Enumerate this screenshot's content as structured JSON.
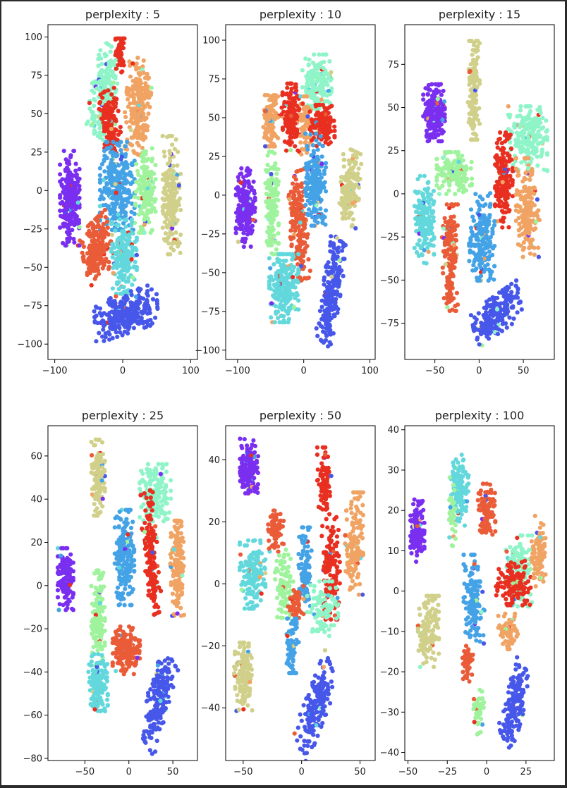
{
  "colors": {
    "frame_background": "#2b2b2b",
    "plot_background": "#ffffff",
    "axis_color": "#000000"
  },
  "chart_data": [
    {
      "type": "scatter",
      "title": "perplexity : 5",
      "xlim": [
        -110,
        110
      ],
      "ylim": [
        -110,
        108
      ],
      "xticks": [
        -100,
        0,
        100
      ],
      "yticks": [
        -100,
        -75,
        -50,
        -25,
        0,
        25,
        50,
        75,
        100
      ],
      "clusters": [
        {
          "color": "#7a2ff0",
          "cx": -78,
          "cy": -5,
          "rx": 13,
          "ry": 28,
          "angle": 0,
          "n": 220
        },
        {
          "color": "#8ff4c8",
          "cx": -28,
          "cy": 65,
          "rx": 16,
          "ry": 28,
          "angle": -0.3,
          "n": 200
        },
        {
          "color": "#e82f20",
          "cx": -4,
          "cy": 88,
          "rx": 6,
          "ry": 10,
          "angle": 0,
          "n": 50
        },
        {
          "color": "#e82f20",
          "cx": -18,
          "cy": 44,
          "rx": 12,
          "ry": 20,
          "angle": 0.3,
          "n": 150
        },
        {
          "color": "#f0a363",
          "cx": 22,
          "cy": 55,
          "rx": 16,
          "ry": 28,
          "angle": -0.2,
          "n": 220
        },
        {
          "color": "#44a2e6",
          "cx": -8,
          "cy": 3,
          "rx": 23,
          "ry": 26,
          "angle": 0,
          "n": 280
        },
        {
          "color": "#9ef39c",
          "cx": 33,
          "cy": 0,
          "rx": 14,
          "ry": 25,
          "angle": 0,
          "n": 170
        },
        {
          "color": "#d0d08a",
          "cx": 72,
          "cy": -3,
          "rx": 12,
          "ry": 35,
          "angle": 0,
          "n": 200
        },
        {
          "color": "#ea5b38",
          "cx": -38,
          "cy": -38,
          "rx": 19,
          "ry": 17,
          "angle": 0.4,
          "n": 200
        },
        {
          "color": "#63d8dc",
          "cx": 2,
          "cy": -43,
          "rx": 17,
          "ry": 22,
          "angle": 0,
          "n": 190
        },
        {
          "color": "#4657ea",
          "cx": 5,
          "cy": -80,
          "rx": 42,
          "ry": 12,
          "angle": 0.15,
          "n": 260
        }
      ]
    },
    {
      "type": "scatter",
      "title": "perplexity : 10",
      "xlim": [
        -118,
        108
      ],
      "ylim": [
        -106,
        110
      ],
      "xticks": [
        -100,
        0,
        100
      ],
      "yticks": [
        -100,
        -75,
        -50,
        -25,
        0,
        25,
        50,
        75,
        100
      ],
      "clusters": [
        {
          "color": "#8ff4c8",
          "cx": 20,
          "cy": 72,
          "rx": 20,
          "ry": 17,
          "angle": 0,
          "n": 170
        },
        {
          "color": "#f0a363",
          "cx": -50,
          "cy": 48,
          "rx": 10,
          "ry": 15,
          "angle": 0,
          "n": 110
        },
        {
          "color": "#e82f20",
          "cx": -20,
          "cy": 50,
          "rx": 12,
          "ry": 20,
          "angle": 0,
          "n": 150
        },
        {
          "color": "#f0a363",
          "cx": 3,
          "cy": 45,
          "rx": 7,
          "ry": 17,
          "angle": 0,
          "n": 80
        },
        {
          "color": "#e82f20",
          "cx": 28,
          "cy": 45,
          "rx": 17,
          "ry": 12,
          "angle": 0,
          "n": 130
        },
        {
          "color": "#7a2ff0",
          "cx": -88,
          "cy": -8,
          "rx": 13,
          "ry": 23,
          "angle": 0,
          "n": 200
        },
        {
          "color": "#9ef39c",
          "cx": -48,
          "cy": -5,
          "rx": 9,
          "ry": 30,
          "angle": 0,
          "n": 150
        },
        {
          "color": "#ea5b38",
          "cx": -8,
          "cy": -20,
          "rx": 12,
          "ry": 32,
          "angle": 0.15,
          "n": 200
        },
        {
          "color": "#44a2e6",
          "cx": 18,
          "cy": 10,
          "rx": 14,
          "ry": 27,
          "angle": 0,
          "n": 200
        },
        {
          "color": "#d0d08a",
          "cx": 70,
          "cy": 5,
          "rx": 13,
          "ry": 22,
          "angle": -0.2,
          "n": 170
        },
        {
          "color": "#63d8dc",
          "cx": -30,
          "cy": -60,
          "rx": 20,
          "ry": 20,
          "angle": 0,
          "n": 220
        },
        {
          "color": "#4657ea",
          "cx": 42,
          "cy": -62,
          "rx": 12,
          "ry": 32,
          "angle": -0.35,
          "n": 220
        }
      ]
    },
    {
      "type": "scatter",
      "title": "perplexity : 15",
      "xlim": [
        -84,
        85
      ],
      "ylim": [
        -96,
        98
      ],
      "xticks": [
        -50,
        0,
        50
      ],
      "yticks": [
        -75,
        -50,
        -25,
        0,
        25,
        50,
        75
      ],
      "clusters": [
        {
          "color": "#7a2ff0",
          "cx": -51,
          "cy": 47,
          "rx": 11,
          "ry": 15,
          "angle": 0,
          "n": 200
        },
        {
          "color": "#d0d08a",
          "cx": -6,
          "cy": 60,
          "rx": 6,
          "ry": 26,
          "angle": 0,
          "n": 140
        },
        {
          "color": "#8ff4c8",
          "cx": 55,
          "cy": 32,
          "rx": 20,
          "ry": 17,
          "angle": 0,
          "n": 200
        },
        {
          "color": "#9ef39c",
          "cx": -28,
          "cy": 12,
          "rx": 18,
          "ry": 11,
          "angle": 0,
          "n": 150
        },
        {
          "color": "#e82f20",
          "cx": 28,
          "cy": 8,
          "rx": 9,
          "ry": 25,
          "angle": 0,
          "n": 170
        },
        {
          "color": "#63d8dc",
          "cx": -62,
          "cy": -15,
          "rx": 10,
          "ry": 23,
          "angle": 0,
          "n": 170
        },
        {
          "color": "#ea5b38",
          "cx": -33,
          "cy": -37,
          "rx": 8,
          "ry": 28,
          "angle": 0,
          "n": 160
        },
        {
          "color": "#44a2e6",
          "cx": 3,
          "cy": -25,
          "rx": 13,
          "ry": 23,
          "angle": 0,
          "n": 190
        },
        {
          "color": "#f0a363",
          "cx": 55,
          "cy": -8,
          "rx": 12,
          "ry": 26,
          "angle": 0,
          "n": 170
        },
        {
          "color": "#4657ea",
          "cx": 20,
          "cy": -70,
          "rx": 25,
          "ry": 10,
          "angle": 0.35,
          "n": 200
        }
      ]
    },
    {
      "type": "scatter",
      "title": "perplexity : 25",
      "xlim": [
        -92,
        78
      ],
      "ylim": [
        -81,
        74
      ],
      "xticks": [
        -50,
        0,
        50
      ],
      "yticks": [
        -80,
        -60,
        -40,
        -20,
        0,
        20,
        40,
        60
      ],
      "clusters": [
        {
          "color": "#d0d08a",
          "cx": -35,
          "cy": 50,
          "rx": 7,
          "ry": 16,
          "angle": 0,
          "n": 130
        },
        {
          "color": "#8ff4c8",
          "cx": 30,
          "cy": 43,
          "rx": 16,
          "ry": 12,
          "angle": 0,
          "n": 170
        },
        {
          "color": "#44a2e6",
          "cx": -5,
          "cy": 13,
          "rx": 10,
          "ry": 20,
          "angle": 0,
          "n": 180
        },
        {
          "color": "#e82f20",
          "cx": 25,
          "cy": 15,
          "rx": 7,
          "ry": 26,
          "angle": 0.2,
          "n": 170
        },
        {
          "color": "#f0a363",
          "cx": 55,
          "cy": 8,
          "rx": 7,
          "ry": 20,
          "angle": 0,
          "n": 140
        },
        {
          "color": "#7a2ff0",
          "cx": -72,
          "cy": 3,
          "rx": 8,
          "ry": 13,
          "angle": 0,
          "n": 140
        },
        {
          "color": "#9ef39c",
          "cx": -35,
          "cy": -15,
          "rx": 7,
          "ry": 20,
          "angle": 0,
          "n": 130
        },
        {
          "color": "#ea5b38",
          "cx": -3,
          "cy": -30,
          "rx": 14,
          "ry": 10,
          "angle": 0,
          "n": 180
        },
        {
          "color": "#63d8dc",
          "cx": -35,
          "cy": -45,
          "rx": 10,
          "ry": 12,
          "angle": 0,
          "n": 150
        },
        {
          "color": "#4657ea",
          "cx": 33,
          "cy": -53,
          "rx": 10,
          "ry": 22,
          "angle": -0.6,
          "n": 210
        }
      ]
    },
    {
      "type": "scatter",
      "title": "perplexity : 50",
      "xlim": [
        -65,
        63
      ],
      "ylim": [
        -57,
        51
      ],
      "xticks": [
        -50,
        0,
        50
      ],
      "yticks": [
        -40,
        -20,
        0,
        20,
        40
      ],
      "clusters": [
        {
          "color": "#7a2ff0",
          "cx": -45,
          "cy": 38,
          "rx": 7,
          "ry": 8,
          "angle": 0,
          "n": 150
        },
        {
          "color": "#e82f20",
          "cx": 20,
          "cy": 33,
          "rx": 6,
          "ry": 10,
          "angle": 0,
          "n": 90
        },
        {
          "color": "#f0a363",
          "cx": 45,
          "cy": 13,
          "rx": 7,
          "ry": 15,
          "angle": 0,
          "n": 140
        },
        {
          "color": "#ea5b38",
          "cx": -22,
          "cy": 17,
          "rx": 6,
          "ry": 6,
          "angle": 0,
          "n": 70
        },
        {
          "color": "#63d8dc",
          "cx": -42,
          "cy": 3,
          "rx": 10,
          "ry": 10,
          "angle": 0,
          "n": 150
        },
        {
          "color": "#9ef39c",
          "cx": -15,
          "cy": 0,
          "rx": 7,
          "ry": 10,
          "angle": 0,
          "n": 90
        },
        {
          "color": "#44a2e6",
          "cx": 3,
          "cy": 5,
          "rx": 5,
          "ry": 12,
          "angle": 0,
          "n": 90
        },
        {
          "color": "#e82f20",
          "cx": 25,
          "cy": 5,
          "rx": 7,
          "ry": 15,
          "angle": 0,
          "n": 120
        },
        {
          "color": "#8ff4c8",
          "cx": 18,
          "cy": -8,
          "rx": 12,
          "ry": 8,
          "angle": 0,
          "n": 100
        },
        {
          "color": "#ea5b38",
          "cx": -5,
          "cy": -6,
          "rx": 6,
          "ry": 5,
          "angle": 0,
          "n": 60
        },
        {
          "color": "#44a2e6",
          "cx": -8,
          "cy": -20,
          "rx": 5,
          "ry": 8,
          "angle": 0,
          "n": 70
        },
        {
          "color": "#d0d08a",
          "cx": -50,
          "cy": -30,
          "rx": 7,
          "ry": 10,
          "angle": 0,
          "n": 130
        },
        {
          "color": "#4657ea",
          "cx": 12,
          "cy": -40,
          "rx": 7,
          "ry": 17,
          "angle": -0.8,
          "n": 190
        }
      ]
    },
    {
      "type": "scatter",
      "title": "perplexity : 100",
      "xlim": [
        -52,
        43
      ],
      "ylim": [
        -42,
        41
      ],
      "xticks": [
        -50,
        -25,
        0,
        25
      ],
      "yticks": [
        -40,
        -30,
        -20,
        -10,
        0,
        10,
        20,
        30,
        40
      ],
      "clusters": [
        {
          "color": "#7a2ff0",
          "cx": -44,
          "cy": 15,
          "rx": 4,
          "ry": 7,
          "angle": 0,
          "n": 130
        },
        {
          "color": "#63d8dc",
          "cx": -17,
          "cy": 25,
          "rx": 5,
          "ry": 8,
          "angle": 0,
          "n": 130
        },
        {
          "color": "#9ef39c",
          "cx": -22,
          "cy": 20,
          "rx": 2,
          "ry": 8,
          "angle": 0,
          "n": 40
        },
        {
          "color": "#ea5b38",
          "cx": 0,
          "cy": 20,
          "rx": 5,
          "ry": 6,
          "angle": 0,
          "n": 100
        },
        {
          "color": "#8ff4c8",
          "cx": 20,
          "cy": 5,
          "rx": 8,
          "ry": 8,
          "angle": 0,
          "n": 130
        },
        {
          "color": "#e82f20",
          "cx": 17,
          "cy": 2,
          "rx": 10,
          "ry": 5,
          "angle": 0,
          "n": 130
        },
        {
          "color": "#f0a363",
          "cx": 33,
          "cy": 10,
          "rx": 4,
          "ry": 8,
          "angle": 0,
          "n": 90
        },
        {
          "color": "#44a2e6",
          "cx": -8,
          "cy": -2,
          "rx": 6,
          "ry": 10,
          "angle": 0,
          "n": 140
        },
        {
          "color": "#d0d08a",
          "cx": -37,
          "cy": -10,
          "rx": 6,
          "ry": 8,
          "angle": 0,
          "n": 130
        },
        {
          "color": "#ea5b38",
          "cx": -12,
          "cy": -18,
          "rx": 3,
          "ry": 4,
          "angle": 0,
          "n": 50
        },
        {
          "color": "#f0a363",
          "cx": 14,
          "cy": -10,
          "rx": 6,
          "ry": 4,
          "angle": 0,
          "n": 60
        },
        {
          "color": "#9ef39c",
          "cx": -5,
          "cy": -30,
          "rx": 3,
          "ry": 5,
          "angle": 0,
          "n": 50
        },
        {
          "color": "#4657ea",
          "cx": 18,
          "cy": -28,
          "rx": 5,
          "ry": 10,
          "angle": -0.6,
          "n": 160
        }
      ]
    }
  ]
}
